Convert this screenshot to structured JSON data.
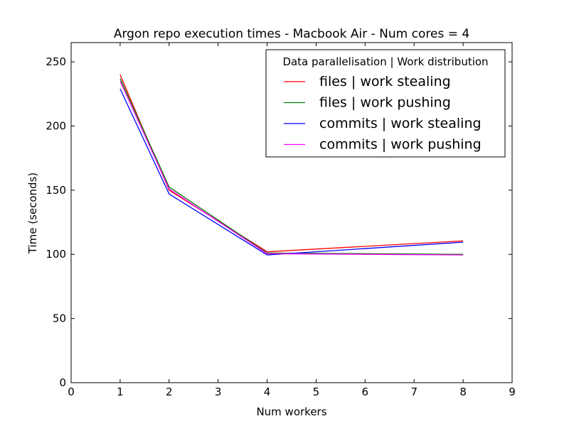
{
  "chart_data": {
    "type": "line",
    "title": "Argon repo execution times - Macbook Air - Num cores = 4",
    "xlabel": "Num workers",
    "ylabel": "Time (seconds)",
    "xlim": [
      0,
      9
    ],
    "ylim": [
      0,
      265
    ],
    "xticks": [
      0,
      1,
      2,
      3,
      4,
      5,
      6,
      7,
      8,
      9
    ],
    "yticks": [
      0,
      50,
      100,
      150,
      200,
      250
    ],
    "grid": false,
    "legend": {
      "title": "Data parallelisation | Work distribution",
      "placement": "top-right"
    },
    "x": [
      1,
      2,
      4,
      8
    ],
    "series": [
      {
        "name": "files | work stealing",
        "color": "#ff0000",
        "values": [
          240,
          150,
          102,
          110.5
        ]
      },
      {
        "name": "files | work pushing",
        "color": "#008000",
        "values": [
          237,
          152.5,
          101,
          100
        ]
      },
      {
        "name": "commits | work stealing",
        "color": "#0000ff",
        "values": [
          229,
          147,
          99.5,
          109.5
        ]
      },
      {
        "name": "commits | work pushing",
        "color": "#ff00ff",
        "values": [
          235,
          151,
          100.5,
          99.5
        ]
      }
    ]
  }
}
